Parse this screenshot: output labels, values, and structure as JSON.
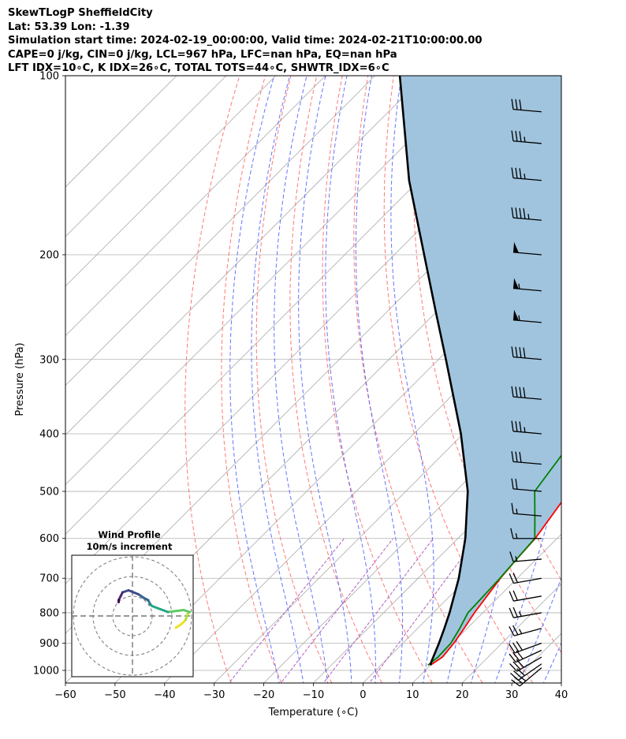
{
  "header": {
    "line1": "SkewTLogP SheffieldCity",
    "line2": "Lat: 53.39   Lon: -1.39",
    "line3": "Simulation start time: 2024-02-19_00:00:00, Valid time: 2024-02-21T10:00:00.00",
    "line4": "CAPE=0 j/kg, CIN=0 j/kg, LCL=967 hPa, LFC=nan hPa, EQ=nan hPa",
    "line5": "LFT IDX=10∘C, K IDX=26∘C, TOTAL TOTS=44∘C, SHWTR_IDX=6∘C"
  },
  "chart_data": {
    "type": "line",
    "subtype": "skew-T log-P",
    "xlabel": "Temperature (∘C)",
    "ylabel": "Pressure (hPa)",
    "xlim": [
      -60,
      40
    ],
    "ylim": [
      1050,
      100
    ],
    "y_scale": "log",
    "x_ticks": [
      -60,
      -50,
      -40,
      -30,
      -20,
      -10,
      0,
      10,
      20,
      30,
      40
    ],
    "y_ticks": [
      100,
      200,
      300,
      400,
      500,
      600,
      700,
      800,
      900,
      1000
    ],
    "x_tick_labels": [
      "−60",
      "−50",
      "−40",
      "−30",
      "−20",
      "−10",
      "0",
      "10",
      "20",
      "30",
      "40"
    ],
    "y_tick_labels": [
      "100",
      "200",
      "300",
      "400",
      "500",
      "600",
      "700",
      "800",
      "900",
      "1000"
    ],
    "grid": true,
    "colors": {
      "temperature": "#ff0000",
      "dewpoint": "#008000",
      "parcel": "#000000",
      "shading": "#a0c4de",
      "dry_adiabat": "#ff6060",
      "moist_adiabat": "#4a5cff",
      "mixing_ratio": "#b060c0",
      "isotherm": "#aaaaaa"
    },
    "series": [
      {
        "role": "temperature",
        "points": [
          [
            980,
            10.0
          ],
          [
            950,
            10.8
          ],
          [
            900,
            10.3
          ],
          [
            850,
            9.4
          ],
          [
            800,
            8.3
          ],
          [
            700,
            6.6
          ],
          [
            650,
            6.0
          ],
          [
            600,
            5.6
          ],
          [
            500,
            3.0
          ],
          [
            430,
            0.5
          ],
          [
            380,
            -0.5
          ],
          [
            330,
            -5.0
          ],
          [
            300,
            -8.0
          ],
          [
            270,
            -10.0
          ],
          [
            250,
            -11.0
          ],
          [
            220,
            -15.0
          ],
          [
            200,
            -17.0
          ],
          [
            185,
            -16.0
          ],
          [
            170,
            -11.0
          ],
          [
            155,
            -6.0
          ],
          [
            140,
            -2.0
          ],
          [
            125,
            1.0
          ],
          [
            110,
            3.5
          ],
          [
            100,
            4.0
          ]
        ]
      },
      {
        "role": "dewpoint",
        "points": [
          [
            980,
            9.5
          ],
          [
            950,
            9.9
          ],
          [
            900,
            9.7
          ],
          [
            850,
            8.5
          ],
          [
            800,
            7.0
          ],
          [
            700,
            6.5
          ],
          [
            600,
            5.5
          ],
          [
            550,
            1.0
          ],
          [
            500,
            -4.0
          ],
          [
            430,
            -6.0
          ],
          [
            400,
            -10.0
          ],
          [
            350,
            -15.0
          ],
          [
            320,
            -16.0
          ],
          [
            300,
            -16.0
          ],
          [
            270,
            -14.0
          ],
          [
            250,
            -15.0
          ],
          [
            220,
            -17.0
          ],
          [
            200,
            -20.0
          ],
          [
            185,
            -19.5
          ],
          [
            175,
            -18.0
          ],
          [
            160,
            -22.0
          ],
          [
            145,
            -27.0
          ],
          [
            130,
            -22.0
          ],
          [
            115,
            -17.0
          ],
          [
            100,
            -12.0
          ]
        ]
      },
      {
        "role": "parcel",
        "points": [
          [
            980,
            10.0
          ],
          [
            967,
            9.5
          ],
          [
            900,
            7.3
          ],
          [
            850,
            5.4
          ],
          [
            800,
            3.3
          ],
          [
            700,
            -1.8
          ],
          [
            600,
            -8.5
          ],
          [
            500,
            -17.5
          ],
          [
            400,
            -30.5
          ],
          [
            300,
            -48.5
          ],
          [
            250,
            -60.0
          ],
          [
            200,
            -74.0
          ],
          [
            150,
            -92.0
          ],
          [
            100,
            -115.0
          ]
        ]
      }
    ],
    "wind_barbs": {
      "x_temp": 36,
      "speed_unit": "kt",
      "barbs": [
        {
          "p": 990,
          "dir": 230,
          "speed": 25
        },
        {
          "p": 975,
          "dir": 235,
          "speed": 30
        },
        {
          "p": 950,
          "dir": 240,
          "speed": 30
        },
        {
          "p": 925,
          "dir": 245,
          "speed": 30
        },
        {
          "p": 900,
          "dir": 250,
          "speed": 30
        },
        {
          "p": 850,
          "dir": 255,
          "speed": 25
        },
        {
          "p": 800,
          "dir": 260,
          "speed": 25
        },
        {
          "p": 750,
          "dir": 260,
          "speed": 20
        },
        {
          "p": 700,
          "dir": 260,
          "speed": 20
        },
        {
          "p": 650,
          "dir": 265,
          "speed": 15
        },
        {
          "p": 600,
          "dir": 270,
          "speed": 15
        },
        {
          "p": 550,
          "dir": 275,
          "speed": 15
        },
        {
          "p": 500,
          "dir": 275,
          "speed": 20
        },
        {
          "p": 450,
          "dir": 275,
          "speed": 30
        },
        {
          "p": 400,
          "dir": 275,
          "speed": 35
        },
        {
          "p": 350,
          "dir": 275,
          "speed": 40
        },
        {
          "p": 300,
          "dir": 275,
          "speed": 40
        },
        {
          "p": 260,
          "dir": 275,
          "speed": 55
        },
        {
          "p": 230,
          "dir": 275,
          "speed": 55
        },
        {
          "p": 200,
          "dir": 275,
          "speed": 50
        },
        {
          "p": 175,
          "dir": 275,
          "speed": 45
        },
        {
          "p": 150,
          "dir": 275,
          "speed": 35
        },
        {
          "p": 130,
          "dir": 275,
          "speed": 35
        },
        {
          "p": 115,
          "dir": 275,
          "speed": 30
        }
      ]
    },
    "hodograph": {
      "title": "Wind Profile",
      "subtitle": "10m/s increment",
      "ring_spacing": 10,
      "rings": 3,
      "unit": "m/s",
      "trace": [
        [
          22,
          -6
        ],
        [
          25,
          -4
        ],
        [
          27,
          -2
        ],
        [
          28,
          1
        ],
        [
          29,
          2
        ],
        [
          26,
          3
        ],
        [
          18,
          2
        ],
        [
          10,
          5
        ],
        [
          9,
          6
        ],
        [
          8,
          8
        ],
        [
          6,
          9
        ],
        [
          3,
          11
        ],
        [
          -2,
          13
        ],
        [
          -5,
          12
        ],
        [
          -6,
          10
        ],
        [
          -7,
          8
        ],
        [
          -7,
          7
        ]
      ]
    }
  }
}
